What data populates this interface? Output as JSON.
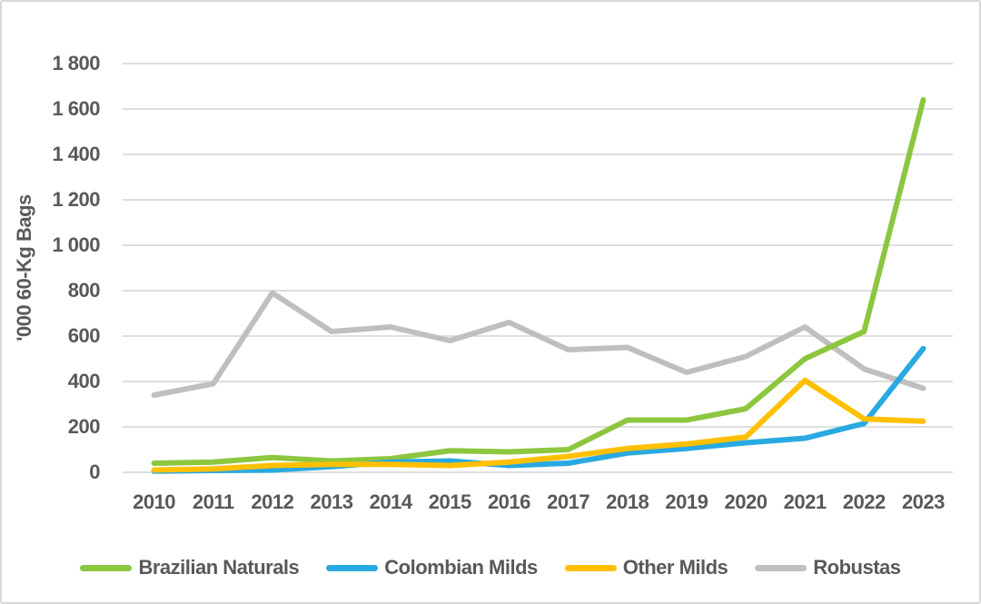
{
  "chart_data": {
    "type": "line",
    "title": "",
    "ylabel": "'000 60-Kg Bags",
    "xlabel": "",
    "categories": [
      "2010",
      "2011",
      "2012",
      "2013",
      "2014",
      "2015",
      "2016",
      "2017",
      "2018",
      "2019",
      "2020",
      "2021",
      "2022",
      "2023"
    ],
    "series": [
      {
        "name": "Brazilian Naturals",
        "color": "#8DC63F",
        "values": [
          40,
          45,
          65,
          50,
          60,
          95,
          90,
          100,
          230,
          230,
          280,
          500,
          620,
          1640
        ]
      },
      {
        "name": "Colombian Milds",
        "color": "#29A9E1",
        "values": [
          5,
          8,
          10,
          25,
          45,
          50,
          30,
          40,
          85,
          105,
          130,
          150,
          215,
          545
        ]
      },
      {
        "name": "Other Milds",
        "color": "#FFC000",
        "values": [
          10,
          15,
          30,
          35,
          35,
          30,
          45,
          70,
          105,
          125,
          155,
          405,
          235,
          225
        ]
      },
      {
        "name": "Robustas",
        "color": "#BFBFBF",
        "values": [
          340,
          390,
          790,
          620,
          640,
          580,
          660,
          540,
          550,
          440,
          510,
          640,
          455,
          370
        ]
      }
    ],
    "ylim": [
      0,
      1800
    ],
    "ytick_step": 200,
    "grid": true,
    "gridline_color": "#D9D9D9",
    "axis_text_color": "#595959",
    "legend_position": "bottom"
  }
}
